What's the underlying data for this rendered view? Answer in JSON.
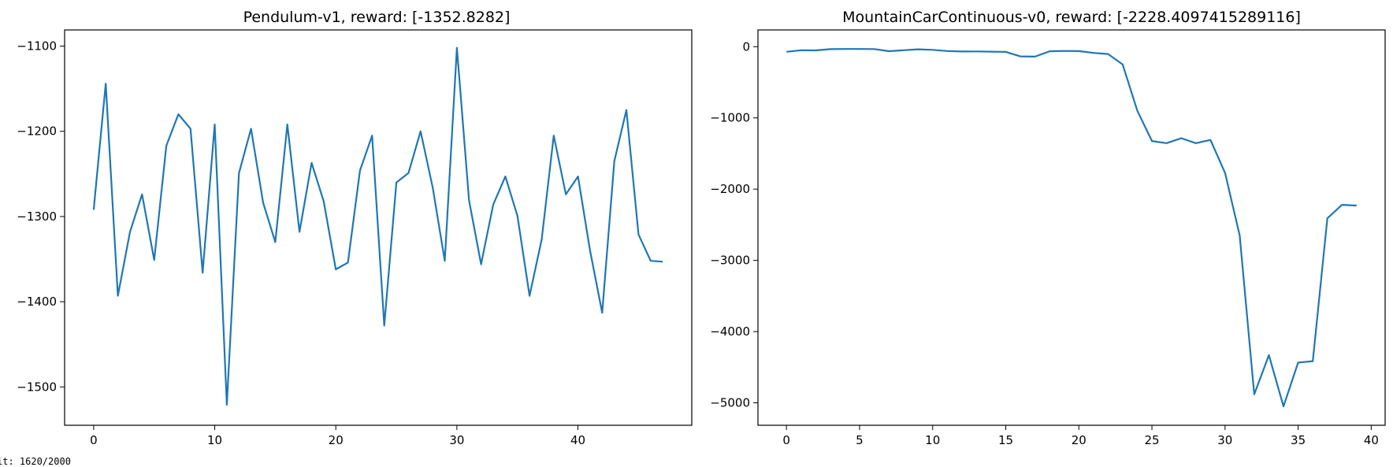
{
  "chart_data": [
    {
      "type": "line",
      "title": "Pendulum-v1, reward: [-1352.8282]",
      "xlabel": "",
      "ylabel": "",
      "xlim": [
        -2.4,
        49.4
      ],
      "ylim": [
        -1545,
        -1081
      ],
      "xticks": [
        0,
        10,
        20,
        30,
        40
      ],
      "yticks": [
        -1500,
        -1400,
        -1300,
        -1200,
        -1100
      ],
      "grid": false,
      "series": [
        {
          "color": "#1f77b4",
          "x": [
            0,
            1,
            2,
            3,
            4,
            5,
            6,
            7,
            8,
            9,
            10,
            11,
            12,
            13,
            14,
            15,
            16,
            17,
            18,
            19,
            20,
            21,
            22,
            23,
            24,
            25,
            26,
            27,
            28,
            29,
            30,
            31,
            32,
            33,
            34,
            35,
            36,
            37,
            38,
            39,
            40,
            41,
            42,
            43,
            44,
            45,
            46,
            47
          ],
          "y": [
            -1292,
            -1144,
            -1393,
            -1318,
            -1274,
            -1351,
            -1217,
            -1180,
            -1197,
            -1366,
            -1192,
            -1521,
            -1249,
            -1197,
            -1284,
            -1330,
            -1192,
            -1318,
            -1237,
            -1282,
            -1362,
            -1354,
            -1246,
            -1205,
            -1428,
            -1260,
            -1249,
            -1200,
            -1266,
            -1352,
            -1102,
            -1281,
            -1356,
            -1286,
            -1253,
            -1299,
            -1393,
            -1327,
            -1205,
            -1274,
            -1253,
            -1340,
            -1413,
            -1235,
            -1175,
            -1321,
            -1352,
            -1353
          ]
        }
      ]
    },
    {
      "type": "line",
      "title": "MountainCarContinuous-v0, reward: [-2228.4097415289116]",
      "xlabel": "",
      "ylabel": "",
      "xlim": [
        -1.95,
        40.95
      ],
      "ylim": [
        -5315,
        235
      ],
      "xticks": [
        0,
        5,
        10,
        15,
        20,
        25,
        30,
        35,
        40
      ],
      "yticks": [
        -5000,
        -4000,
        -3000,
        -2000,
        -1000,
        0
      ],
      "grid": false,
      "series": [
        {
          "color": "#1f77b4",
          "x": [
            0,
            1,
            2,
            3,
            4,
            5,
            6,
            7,
            8,
            9,
            10,
            11,
            12,
            13,
            14,
            15,
            16,
            17,
            18,
            19,
            20,
            21,
            22,
            23,
            24,
            25,
            26,
            27,
            28,
            29,
            30,
            31,
            32,
            33,
            34,
            35,
            36,
            37,
            38,
            39
          ],
          "y": [
            -72,
            -50,
            -52,
            -35,
            -32,
            -32,
            -34,
            -63,
            -50,
            -37,
            -45,
            -61,
            -68,
            -67,
            -70,
            -73,
            -136,
            -140,
            -65,
            -60,
            -62,
            -88,
            -103,
            -250,
            -900,
            -1325,
            -1355,
            -1285,
            -1355,
            -1310,
            -1770,
            -2650,
            -4880,
            -4330,
            -5050,
            -4435,
            -4415,
            -2410,
            -2220,
            -2230
          ]
        }
      ]
    }
  ],
  "status": "it: 1620/2000"
}
